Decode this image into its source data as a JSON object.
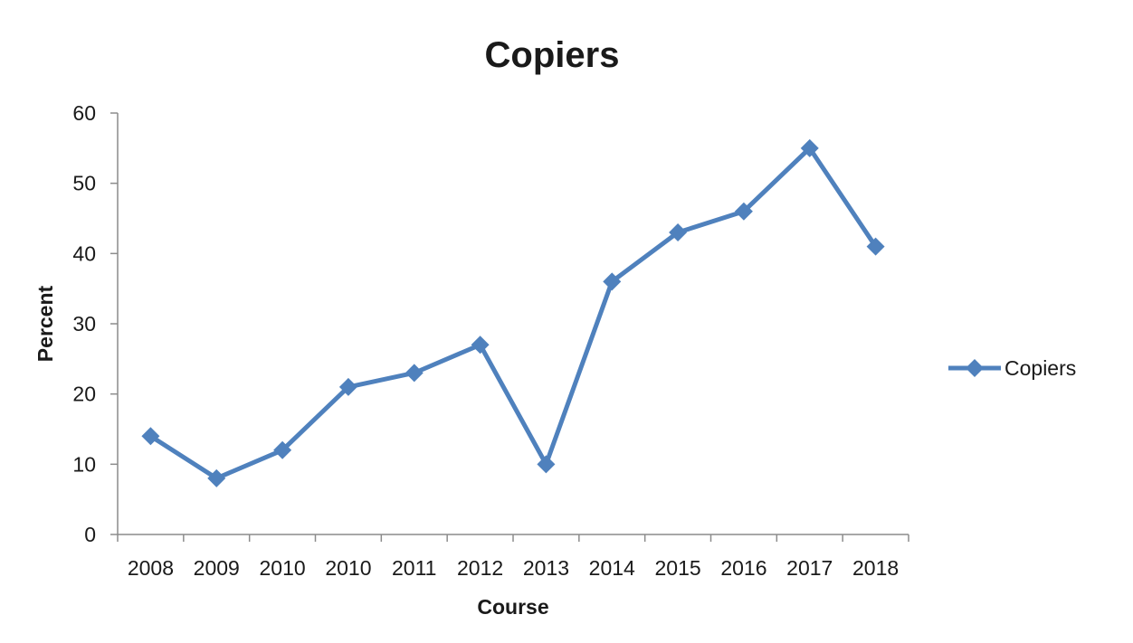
{
  "chart_data": {
    "type": "line",
    "title": "Copiers",
    "xlabel": "Course",
    "ylabel": "Percent",
    "categories": [
      "2008",
      "2009",
      "2010",
      "2010",
      "2011",
      "2012",
      "2013",
      "2014",
      "2015",
      "2016",
      "2017",
      "2018"
    ],
    "series": [
      {
        "name": "Copiers",
        "values": [
          14,
          8,
          12,
          21,
          23,
          27,
          10,
          36,
          43,
          46,
          55,
          41
        ],
        "color": "#4f81bd",
        "marker": "diamond"
      }
    ],
    "ylim": [
      0,
      60
    ],
    "yticks": [
      0,
      10,
      20,
      30,
      40,
      50,
      60
    ],
    "grid": false,
    "legend_position": "right"
  }
}
